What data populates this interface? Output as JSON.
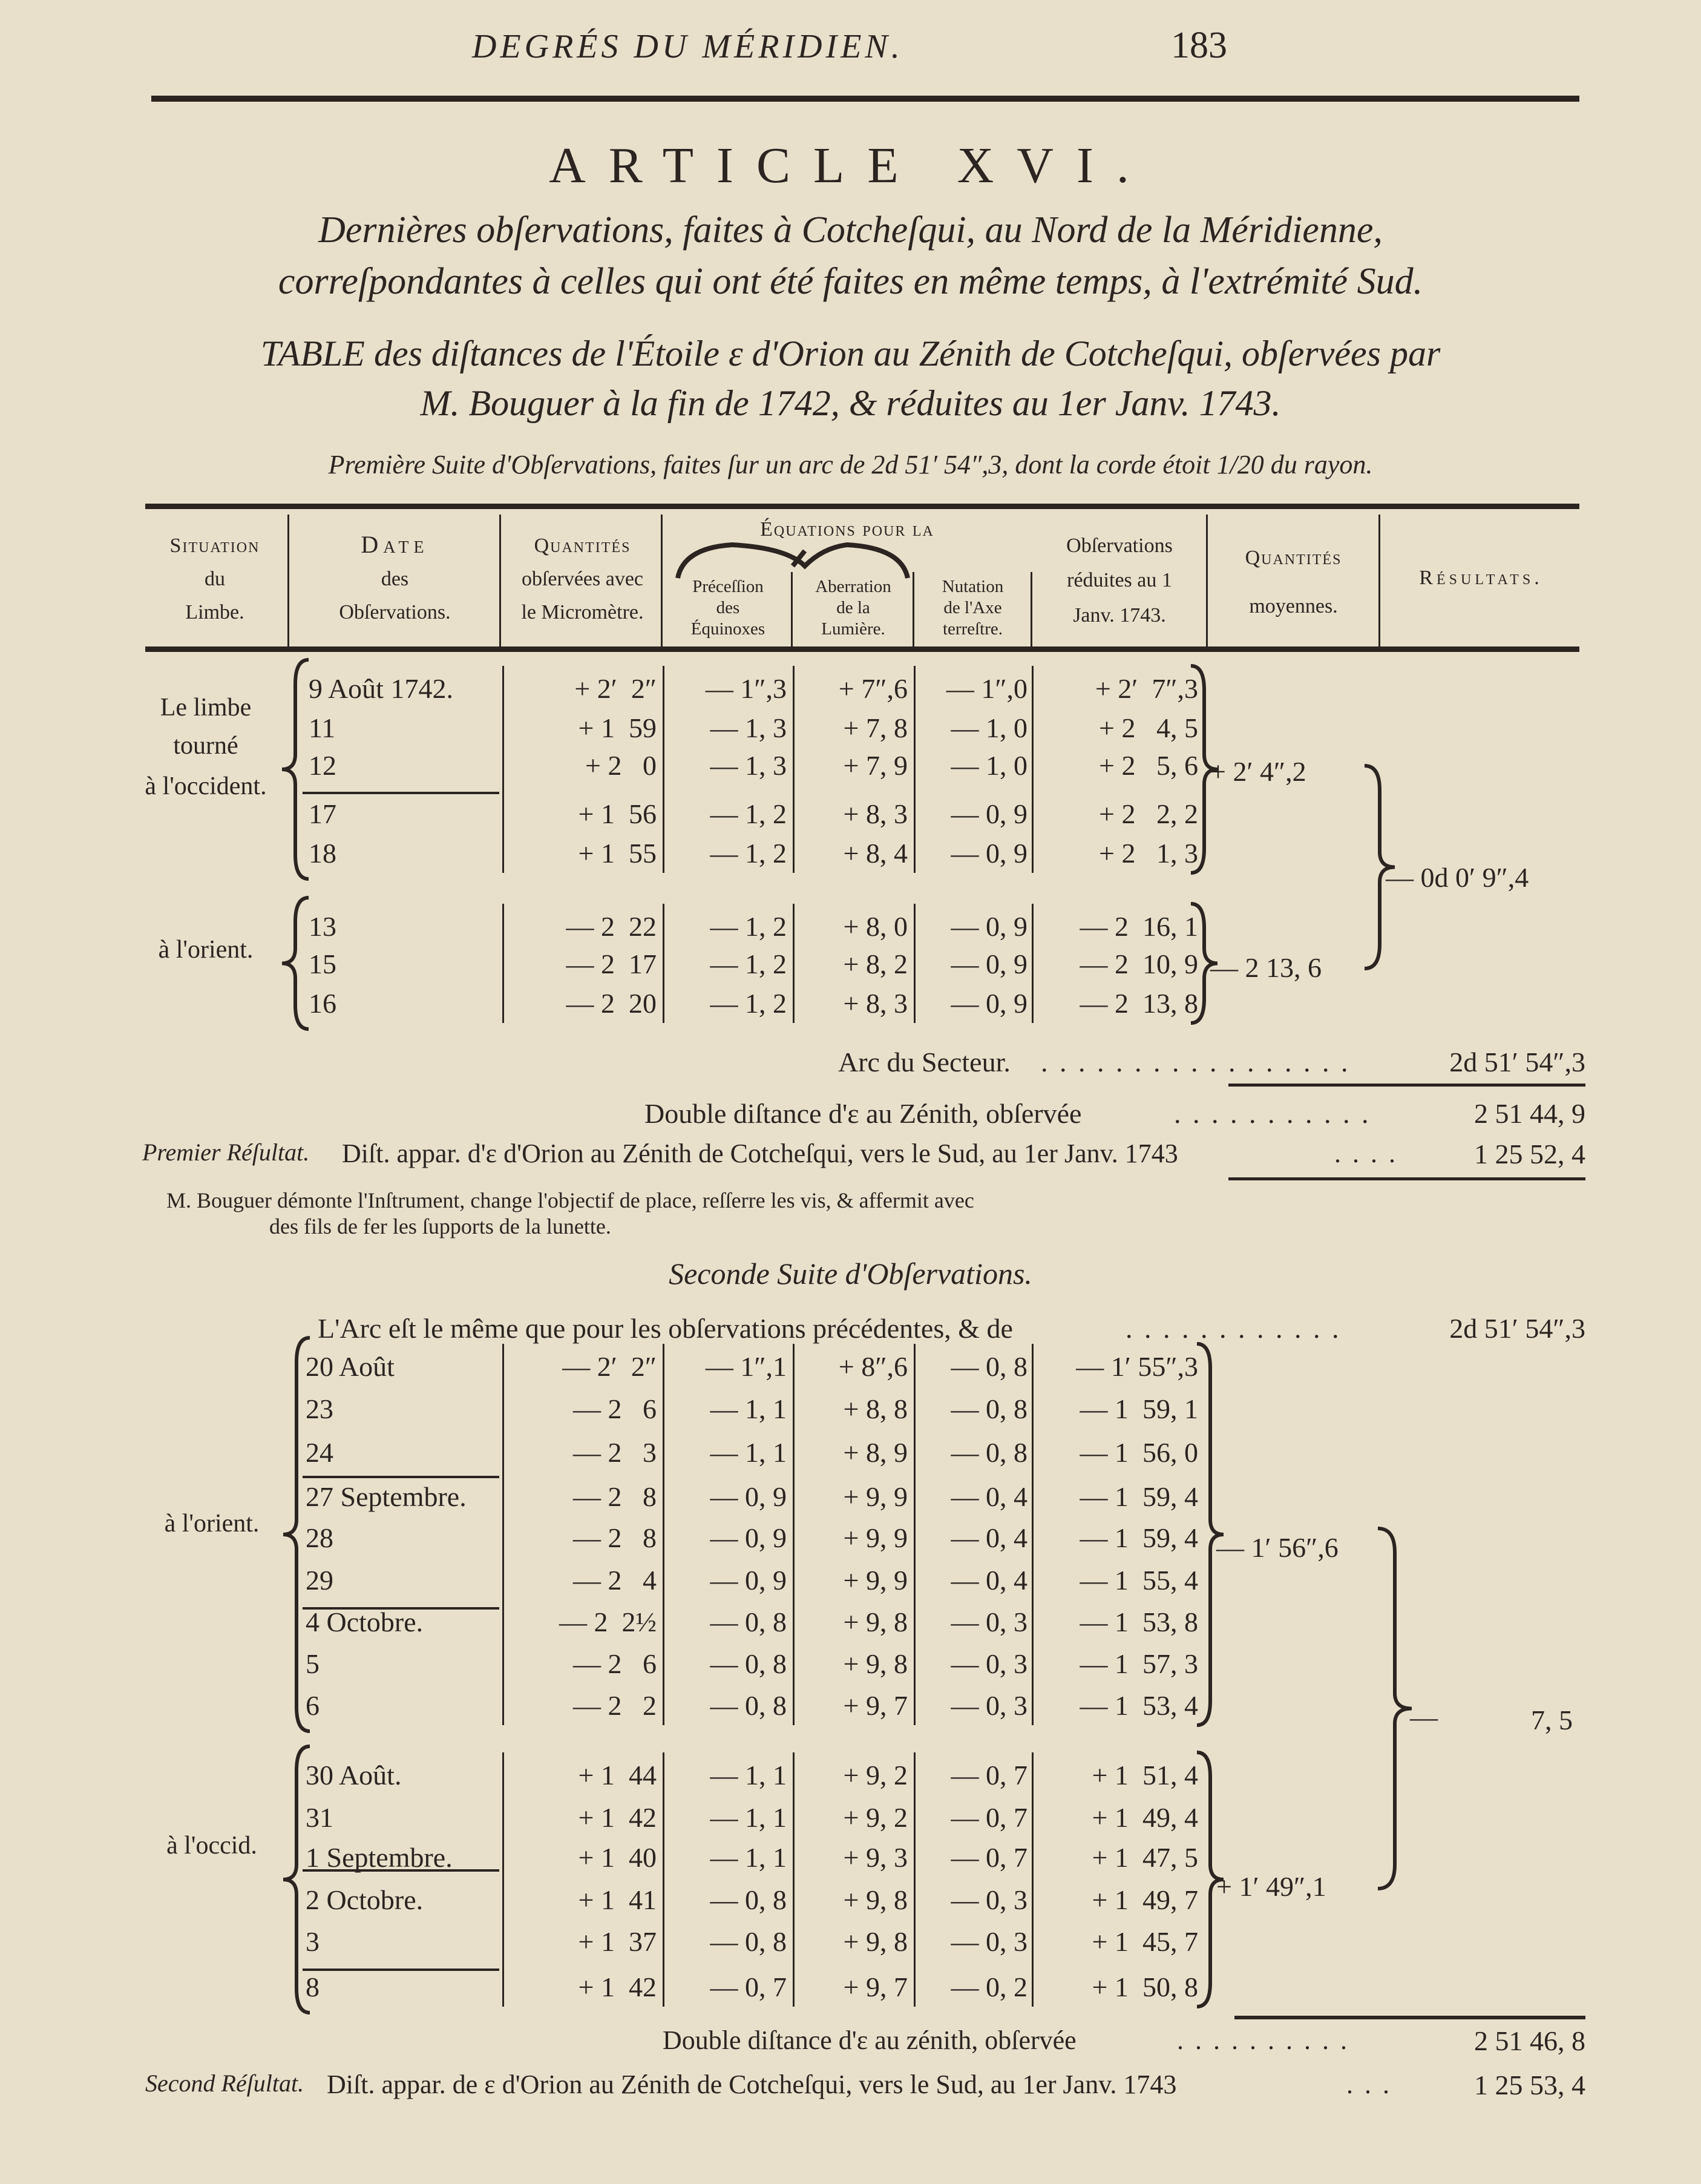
{
  "running_head": {
    "title": "DEGRÉS DU MÉRIDIEN.",
    "page_number": "183"
  },
  "article": "ARTICLE XVI.",
  "heading": {
    "line1": "Dernières obſervations, faites à Cotcheſqui, au Nord de la Méridienne,",
    "line2": "correſpondantes à celles qui ont été faites en même temps, à l'extrémité Sud."
  },
  "table_title": {
    "line1": "TABLE des diſtances de l'Étoile ε d'Orion au Zénith de Cotcheſqui, obſervées par",
    "line2": "M. Bouguer à la fin de 1742, & réduites au 1er Janv. 1743."
  },
  "first_series_caption": "Première Suite d'Obſervations, faites ſur un arc de 2d 51′ 54″,3, dont la corde étoit 1/20 du rayon.",
  "columns": {
    "situation": [
      "Situation",
      "du",
      "Limbe."
    ],
    "date": [
      "Date",
      "des",
      "Obſervations."
    ],
    "quantites": [
      "Quantités",
      "obſervées avec",
      "le Micromètre."
    ],
    "equations_title": "Équations pour la",
    "precession": [
      "Préceſſion",
      "des",
      "Équinoxes"
    ],
    "aberration": [
      "Aberration",
      "de la",
      "Lumière."
    ],
    "nutation": [
      "Nutation",
      "de l'Axe",
      "terreſtre."
    ],
    "reduites": [
      "Obſervations",
      "réduites au 1",
      "Janv. 1743."
    ],
    "moyennes": [
      "Quantités",
      "moyennes."
    ],
    "resultats": "Résultats."
  },
  "first_series": {
    "groups": [
      {
        "situation": [
          "Le limbe",
          "tourné",
          "à l'occident."
        ],
        "mean": "+ 2′ 4″,2",
        "rows": [
          {
            "date": "9 Août 1742.",
            "qty": "+ 2′  2″",
            "prec": "— 1″,3",
            "aber": "+ 7″,6",
            "nut": "— 1″,0",
            "red": "+ 2′  7″,3"
          },
          {
            "date": "11",
            "qty": "+ 1  59",
            "prec": "— 1, 3",
            "aber": "+ 7, 8",
            "nut": "— 1, 0",
            "red": "+ 2   4, 5"
          },
          {
            "date": "12",
            "qty": "+ 2   0",
            "prec": "— 1, 3",
            "aber": "+ 7, 9",
            "nut": "— 1, 0",
            "red": "+ 2   5, 6"
          },
          {
            "date": "17",
            "qty": "+ 1  56",
            "prec": "— 1, 2",
            "aber": "+ 8, 3",
            "nut": "— 0, 9",
            "red": "+ 2   2, 2"
          },
          {
            "date": "18",
            "qty": "+ 1  55",
            "prec": "— 1, 2",
            "aber": "+ 8, 4",
            "nut": "— 0, 9",
            "red": "+ 2   1, 3"
          }
        ]
      },
      {
        "situation": [
          "à l'orient."
        ],
        "mean": "— 2  13, 6",
        "rows": [
          {
            "date": "13",
            "qty": "— 2  22",
            "prec": "— 1, 2",
            "aber": "+ 8, 0",
            "nut": "— 0, 9",
            "red": "— 2  16, 1"
          },
          {
            "date": "15",
            "qty": "— 2  17",
            "prec": "— 1, 2",
            "aber": "+ 8, 2",
            "nut": "— 0, 9",
            "red": "— 2  10, 9"
          },
          {
            "date": "16",
            "qty": "— 2  20",
            "prec": "— 1, 2",
            "aber": "+ 8, 3",
            "nut": "— 0, 9",
            "red": "— 2  13, 8"
          }
        ]
      }
    ],
    "result": "— 0d 0′ 9″,4",
    "arc_label": "Arc du Secteur.",
    "arc_value": "2d 51′ 54″,3",
    "double_label": "Double diſtance d'ε au Zénith, obſervée",
    "double_value": "2  51  44, 9",
    "result_label": "Premier Réſultat.",
    "result_text": "Diſt. appar. d'ε d'Orion au Zénith de Cotcheſqui, vers le Sud, au 1er Janv. 1743",
    "result_value": "1  25  52, 4"
  },
  "note": {
    "line1": "M. Bouguer démonte l'Inſtrument, change l'objectif de place, reſſerre les vis, & affermit avec",
    "line2": "des fils de fer les ſupports de la lunette."
  },
  "second_series": {
    "title": "Seconde Suite d'Obſervations.",
    "arc_label": "L'Arc eſt le même que pour les obſervations précédentes, & de",
    "arc_value": "2d 51′ 54″,3",
    "groups": [
      {
        "situation": [
          "à l'orient."
        ],
        "mean": "— 1′ 56″,6",
        "rows": [
          {
            "date": "20 Août",
            "qty": "— 2′  2″",
            "prec": "— 1″,1",
            "aber": "+ 8″,6",
            "nut": "— 0, 8",
            "red": "— 1′ 55″,3"
          },
          {
            "date": "23",
            "qty": "— 2   6",
            "prec": "— 1, 1",
            "aber": "+ 8, 8",
            "nut": "— 0, 8",
            "red": "— 1  59, 1"
          },
          {
            "date": "24",
            "qty": "— 2   3",
            "prec": "— 1, 1",
            "aber": "+ 8, 9",
            "nut": "— 0, 8",
            "red": "— 1  56, 0"
          },
          {
            "date": "27 Septembre.",
            "qty": "— 2   8",
            "prec": "— 0, 9",
            "aber": "+ 9, 9",
            "nut": "— 0, 4",
            "red": "— 1  59, 4"
          },
          {
            "date": "28",
            "qty": "— 2   8",
            "prec": "— 0, 9",
            "aber": "+ 9, 9",
            "nut": "— 0, 4",
            "red": "— 1  59, 4"
          },
          {
            "date": "29",
            "qty": "— 2   4",
            "prec": "— 0, 9",
            "aber": "+ 9, 9",
            "nut": "— 0, 4",
            "red": "— 1  55, 4"
          },
          {
            "date": "4 Octobre.",
            "qty": "— 2  2½",
            "prec": "— 0, 8",
            "aber": "+ 9, 8",
            "nut": "— 0, 3",
            "red": "— 1  53, 8"
          },
          {
            "date": "5",
            "qty": "— 2   6",
            "prec": "— 0, 8",
            "aber": "+ 9, 8",
            "nut": "— 0, 3",
            "red": "— 1  57, 3"
          },
          {
            "date": "6",
            "qty": "— 2   2",
            "prec": "— 0, 8",
            "aber": "+ 9, 7",
            "nut": "— 0, 3",
            "red": "— 1  53, 4"
          }
        ]
      },
      {
        "situation": [
          "à l'occid."
        ],
        "mean": "+ 1′ 49″,1",
        "rows": [
          {
            "date": "30 Août.",
            "qty": "+ 1  44",
            "prec": "— 1, 1",
            "aber": "+ 9, 2",
            "nut": "— 0, 7",
            "red": "+ 1  51, 4"
          },
          {
            "date": "31",
            "qty": "+ 1  42",
            "prec": "— 1, 1",
            "aber": "+ 9, 2",
            "nut": "— 0, 7",
            "red": "+ 1  49, 4"
          },
          {
            "date": "1 Septembre.",
            "qty": "+ 1  40",
            "prec": "— 1, 1",
            "aber": "+ 9, 3",
            "nut": "— 0, 7",
            "red": "+ 1  47, 5"
          },
          {
            "date": "2 Octobre.",
            "qty": "+ 1  41",
            "prec": "— 0, 8",
            "aber": "+ 9, 8",
            "nut": "— 0, 3",
            "red": "+ 1  49, 7"
          },
          {
            "date": "3",
            "qty": "+ 1  37",
            "prec": "— 0, 8",
            "aber": "+ 9, 8",
            "nut": "— 0, 3",
            "red": "+ 1  45, 7"
          },
          {
            "date": "8",
            "qty": "+ 1  42",
            "prec": "— 0, 7",
            "aber": "+ 9, 7",
            "nut": "— 0, 2",
            "red": "+ 1  50, 8"
          }
        ]
      }
    ],
    "result_sign": "—",
    "result_value_mid": "7, 5",
    "double_label": "Double diſtance d'ε au zénith, obſervée",
    "double_value": "2  51  46, 8",
    "result_label": "Second Réſultat.",
    "result_text": "Diſt. appar. de ε d'Orion au Zénith de Cotcheſqui, vers le Sud, au 1er Janv. 1743",
    "result_value": "1  25  53, 4"
  },
  "colors": {
    "paper": "#e8e0cb",
    "ink": "#2b2420"
  }
}
